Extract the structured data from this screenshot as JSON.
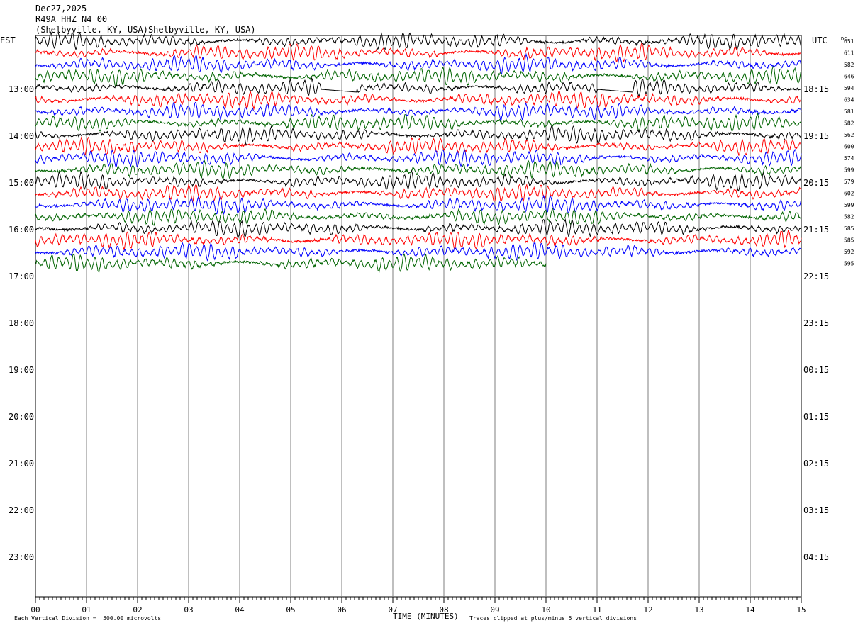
{
  "header": {
    "date": "Dec27,2025",
    "station": "R49A HHZ N4 00",
    "location": "(Shelbyville, KY, USA)Shelbyville, KY, USA)"
  },
  "chart_data": {
    "type": "line",
    "title": "Dec27,2025",
    "left_axis_label": "EST",
    "right_axis_label": "UTC",
    "dc_header": "DC",
    "xlabel": "TIME (MINUTES)",
    "xlim": [
      0,
      15
    ],
    "x_ticks": [
      "00",
      "01",
      "02",
      "03",
      "04",
      "05",
      "06",
      "07",
      "08",
      "09",
      "10",
      "11",
      "12",
      "13",
      "14",
      "15"
    ],
    "left_hour_labels": [
      "13:00",
      "14:00",
      "15:00",
      "16:00",
      "17:00",
      "18:00",
      "19:00",
      "20:00",
      "21:00",
      "22:00",
      "23:00"
    ],
    "right_hour_labels": [
      "18:15",
      "19:15",
      "20:15",
      "21:15",
      "22:15",
      "23:15",
      "00:15",
      "01:15",
      "02:15",
      "03:15",
      "04:15"
    ],
    "trace_colors": [
      "#000000",
      "#ff0000",
      "#0000ff",
      "#006400"
    ],
    "dc_offsets": [
      "651",
      "611",
      "582",
      "646",
      "594",
      "634",
      "581",
      "582",
      "562",
      "600",
      "574",
      "599",
      "579",
      "602",
      "599",
      "582",
      "585",
      "585",
      "592",
      "595"
    ],
    "trace_count": 20,
    "last_trace_end_minute": 10,
    "flat_segments": [
      {
        "trace": 4,
        "start_min": 5.6,
        "end_min": 6.3
      },
      {
        "trace": 4,
        "start_min": 11.0,
        "end_min": 11.7
      }
    ],
    "scale_note": "Each Vertical Division =  500.00 microvolts",
    "clip_note": "Traces clipped at plus/minus 5 vertical divisions",
    "grid": true
  }
}
